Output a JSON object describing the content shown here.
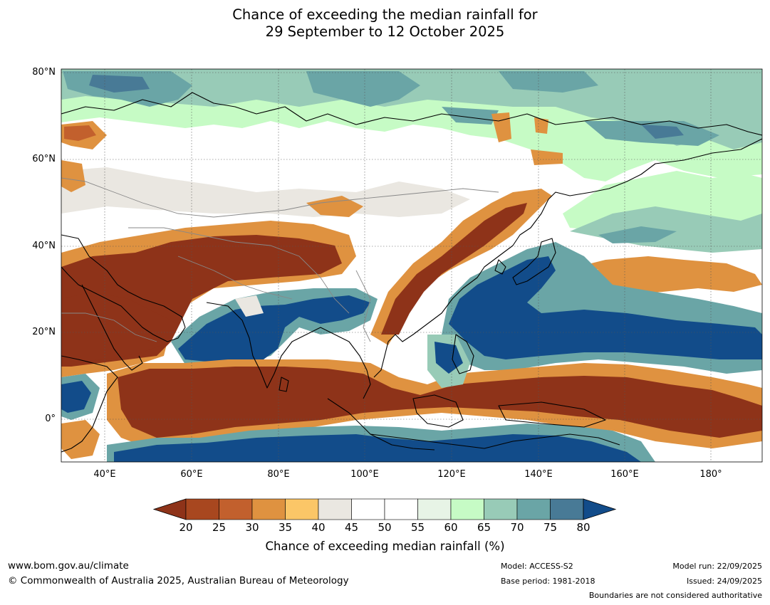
{
  "title": {
    "line1": "Chance of exceeding the median rainfall for",
    "line2": "29 September to 12 October 2025"
  },
  "map": {
    "lat_labels": [
      "80°N",
      "60°N",
      "40°N",
      "20°N",
      "0°"
    ],
    "lon_labels": [
      "40°E",
      "60°E",
      "80°E",
      "100°E",
      "120°E",
      "140°E",
      "160°E",
      "180°"
    ],
    "extent": {
      "lon_min": 30,
      "lon_max": 190,
      "lat_min": -10,
      "lat_max": 81
    }
  },
  "colorbar": {
    "ticks": [
      "20",
      "25",
      "30",
      "35",
      "40",
      "45",
      "50",
      "55",
      "60",
      "65",
      "70",
      "75",
      "80"
    ],
    "colors": [
      "#8e3319",
      "#a8471f",
      "#c2602d",
      "#df9240",
      "#fbc667",
      "#eae7e1",
      "#ffffff",
      "#ffffff",
      "#e7f4e6",
      "#c6fbc5",
      "#98cbb7",
      "#6aa5a6",
      "#487a96",
      "#124c8a"
    ],
    "title": "Chance of exceeding median rainfall (%)"
  },
  "footer": {
    "website": "www.bom.gov.au/climate",
    "copyright": "© Commonwealth of Australia 2025, Australian Bureau of Meteorology",
    "model": "Model: ACCESS-S2",
    "base_period": "Base period: 1981-2018",
    "model_run": "Model run: 22/09/2025",
    "issued": "Issued: 24/09/2025",
    "boundaries_note": "Boundaries are not considered authoritative"
  }
}
